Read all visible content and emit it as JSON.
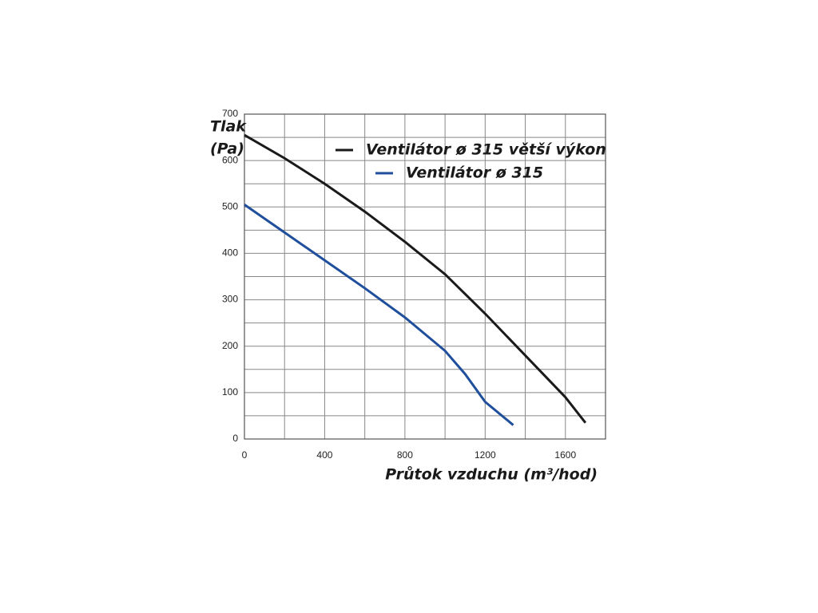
{
  "chart_data": {
    "type": "line",
    "ylabel_lines": [
      "Tlak",
      "(Pa)"
    ],
    "xlabel": "Průtok vzduchu (m³/hod)",
    "series": [
      {
        "name": "Ventilátor ø 315 větší výkon",
        "color": "#1a1a1a",
        "x": [
          0,
          200,
          400,
          600,
          800,
          1000,
          1200,
          1400,
          1600,
          1700
        ],
        "values": [
          655,
          605,
          550,
          490,
          425,
          355,
          270,
          180,
          90,
          35
        ]
      },
      {
        "name": "Ventilátor ø 315",
        "color": "#1f4f9c",
        "x": [
          0,
          200,
          400,
          600,
          800,
          1000,
          1100,
          1200,
          1340
        ],
        "values": [
          505,
          445,
          385,
          325,
          262,
          190,
          140,
          80,
          30
        ]
      }
    ],
    "xlim": [
      0,
      1800
    ],
    "xticks": [
      0,
      400,
      800,
      1200,
      1600
    ],
    "ylim": [
      0,
      700
    ],
    "yticks": [
      0,
      100,
      200,
      300,
      400,
      500,
      600,
      700
    ],
    "grid": true
  }
}
